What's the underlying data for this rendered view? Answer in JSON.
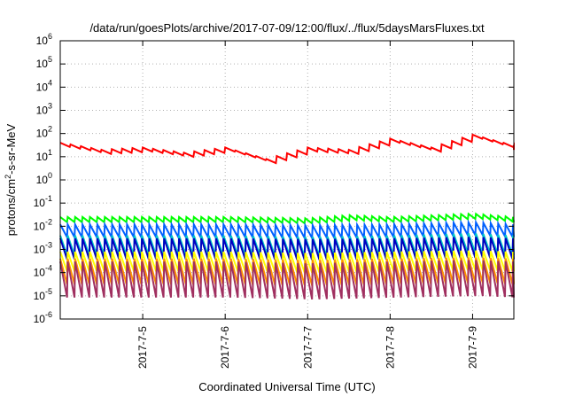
{
  "chart_data": {
    "type": "line",
    "title": "/data/run/goesPlots/archive/2017-07-09/12:00/flux/../flux/5daysMarsFluxes.txt",
    "xlabel": "Coordinated Universal Time (UTC)",
    "ylabel_parts": {
      "pre": "protons/cm",
      "sup": "2",
      "post": "-s-sr-MeV"
    },
    "yscale": "log",
    "ylim": [
      1e-06,
      1000000.0
    ],
    "xlim": [
      "2017-07-04 00:00",
      "2017-07-09 12:00"
    ],
    "grid": true,
    "y_ticks": [
      {
        "value": 1e-06,
        "base": "10",
        "exp": "-6"
      },
      {
        "value": 1e-05,
        "base": "10",
        "exp": "-5"
      },
      {
        "value": 0.0001,
        "base": "10",
        "exp": "-4"
      },
      {
        "value": 0.001,
        "base": "10",
        "exp": "-3"
      },
      {
        "value": 0.01,
        "base": "10",
        "exp": "-2"
      },
      {
        "value": 0.1,
        "base": "10",
        "exp": "-1"
      },
      {
        "value": 1,
        "base": "10",
        "exp": "0"
      },
      {
        "value": 10,
        "base": "10",
        "exp": "1"
      },
      {
        "value": 100,
        "base": "10",
        "exp": "2"
      },
      {
        "value": 1000,
        "base": "10",
        "exp": "3"
      },
      {
        "value": 10000,
        "base": "10",
        "exp": "4"
      },
      {
        "value": 100000,
        "base": "10",
        "exp": "5"
      },
      {
        "value": 1000000,
        "base": "10",
        "exp": "6"
      }
    ],
    "x_ticks": [
      {
        "day": 1,
        "label": "2017-7-5"
      },
      {
        "day": 2,
        "label": "2017-7-6"
      },
      {
        "day": 3,
        "label": "2017-7-7"
      },
      {
        "day": 4,
        "label": "2017-7-8"
      },
      {
        "day": 5,
        "label": "2017-7-9"
      }
    ],
    "series": [
      {
        "color": "#ff0000",
        "period_days": 0.125,
        "log_decay": 0.18,
        "x_days": [
          0.0,
          0.5,
          1.0,
          1.5,
          2.0,
          2.5,
          3.0,
          3.5,
          4.0,
          4.5,
          5.0,
          5.5
        ],
        "peaks": [
          40,
          20,
          25,
          15,
          25,
          8,
          25,
          20,
          60,
          25,
          90,
          30
        ]
      },
      {
        "color": "#00ff00",
        "period_days": 0.09,
        "log_decay": 0.22,
        "x_days": [
          0.0,
          1.0,
          2.0,
          3.0,
          3.5,
          4.0,
          5.0,
          5.5
        ],
        "peaks": [
          0.025,
          0.025,
          0.025,
          0.022,
          0.03,
          0.025,
          0.035,
          0.025
        ]
      },
      {
        "color": "#0060ff",
        "period_days": 0.09,
        "log_decay": 0.55,
        "x_days": [
          0.0,
          1.0,
          2.0,
          3.0,
          4.0,
          5.0,
          5.5
        ],
        "peaks": [
          0.012,
          0.012,
          0.012,
          0.011,
          0.012,
          0.015,
          0.012
        ]
      },
      {
        "color": "#00c8c8",
        "period_days": 0.09,
        "log_decay": 0.85,
        "x_days": [
          0.0,
          1.0,
          2.0,
          3.0,
          4.0,
          5.0,
          5.5
        ],
        "peaks": [
          0.004,
          0.004,
          0.004,
          0.0035,
          0.004,
          0.005,
          0.004
        ]
      },
      {
        "color": "#0000c0",
        "period_days": 0.09,
        "log_decay": 0.9,
        "x_days": [
          0.0,
          1.0,
          2.0,
          3.0,
          4.0,
          5.0,
          5.5
        ],
        "peaks": [
          0.003,
          0.003,
          0.003,
          0.0028,
          0.003,
          0.0035,
          0.003
        ]
      },
      {
        "color": "#ffff00",
        "period_days": 0.09,
        "log_decay": 0.85,
        "x_days": [
          0.0,
          1.0,
          2.0,
          3.0,
          4.0,
          5.0,
          5.5
        ],
        "peaks": [
          0.0008,
          0.0008,
          0.0008,
          0.0007,
          0.0008,
          0.0009,
          0.0008
        ]
      },
      {
        "color": "#ff9000",
        "period_days": 0.09,
        "log_decay": 1.1,
        "x_days": [
          0.0,
          1.0,
          2.0,
          3.0,
          4.0,
          5.0,
          5.5
        ],
        "peaks": [
          0.0004,
          0.0004,
          0.0004,
          0.00035,
          0.0004,
          0.00045,
          0.0004
        ]
      },
      {
        "color": "#a03060",
        "period_days": 0.09,
        "log_decay": 1.55,
        "x_days": [
          0.0,
          1.0,
          2.0,
          3.0,
          4.0,
          5.0,
          5.5
        ],
        "peaks": [
          0.0003,
          0.0003,
          0.0003,
          0.00025,
          0.0003,
          0.00035,
          0.0003
        ]
      }
    ]
  }
}
